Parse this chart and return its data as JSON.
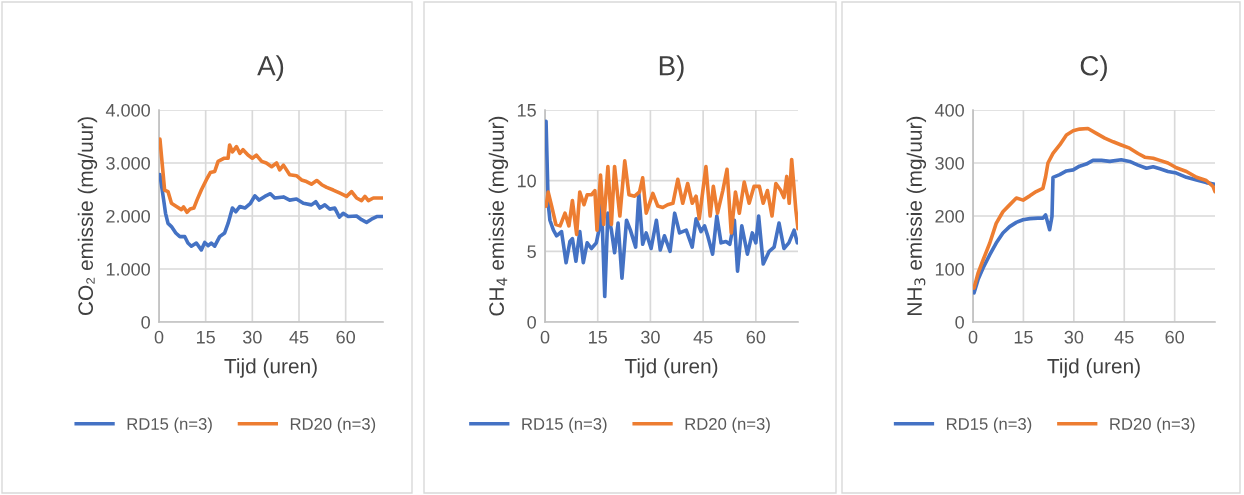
{
  "chart_data": [
    {
      "type": "line",
      "title": "A)",
      "xlabel": "Tijd (uren)",
      "ylabel": "CO₂ emissie (mg/uur)",
      "xlim": [
        0,
        72
      ],
      "xticks": [
        0,
        15,
        30,
        45,
        60
      ],
      "ylim": [
        0,
        4000
      ],
      "yticks": [
        {
          "value": 0,
          "label": "0"
        },
        {
          "value": 1000,
          "label": "1.000"
        },
        {
          "value": 2000,
          "label": "2.000"
        },
        {
          "value": 3000,
          "label": "3.000"
        },
        {
          "value": 4000,
          "label": "4.000"
        }
      ],
      "grid": true,
      "legend": "bottom",
      "marker": "none",
      "line_style": "solid",
      "series": [
        {
          "name": "RD15 (n=3)",
          "color": "#4472c4",
          "x": [
            0.3,
            1.5,
            2.1,
            2.9,
            4,
            5.4,
            6.7,
            8.3,
            9.3,
            10.4,
            12,
            13.6,
            14.7,
            15.8,
            16.8,
            17.9,
            19.5,
            21.1,
            22.2,
            23.6,
            24.7,
            26,
            27.6,
            29.4,
            30.8,
            32.2,
            34,
            35.8,
            37.2,
            40,
            42,
            44.2,
            46.4,
            49,
            50.4,
            51.7,
            53.3,
            54.9,
            56.5,
            58,
            59.2,
            60.8,
            63.5,
            65.1,
            66.7,
            68.3,
            70,
            71.9
          ],
          "values": [
            2780,
            2300,
            2050,
            1860,
            1800,
            1680,
            1610,
            1610,
            1490,
            1430,
            1490,
            1360,
            1500,
            1440,
            1490,
            1430,
            1610,
            1680,
            1860,
            2150,
            2080,
            2180,
            2150,
            2240,
            2380,
            2300,
            2370,
            2420,
            2340,
            2360,
            2300,
            2320,
            2240,
            2210,
            2270,
            2150,
            2210,
            2130,
            2150,
            1980,
            2050,
            1990,
            2000,
            1930,
            1880,
            1940,
            1990,
            1990
          ]
        },
        {
          "name": "RD20 (n=3)",
          "color": "#ed7d31",
          "x": [
            0.3,
            1.8,
            2.9,
            4,
            5.6,
            7.2,
            7.9,
            9,
            10,
            11.2,
            12.2,
            13.6,
            15.2,
            16.5,
            17.9,
            19,
            21,
            22.2,
            22.7,
            23.6,
            24.9,
            26,
            27,
            28.6,
            30,
            31.3,
            33,
            34.5,
            36.2,
            37.8,
            38.8,
            40,
            42,
            44.2,
            45.8,
            47.4,
            49,
            50.7,
            52.3,
            53.9,
            56,
            58.2,
            60.3,
            61.9,
            63.5,
            65.1,
            66.2,
            67.3,
            68.9,
            71.9
          ],
          "values": [
            3450,
            2490,
            2460,
            2240,
            2180,
            2120,
            2170,
            2070,
            2130,
            2150,
            2300,
            2490,
            2680,
            2820,
            2840,
            3030,
            3090,
            3090,
            3340,
            3210,
            3310,
            3180,
            3250,
            3150,
            3090,
            3150,
            3030,
            3000,
            2930,
            3000,
            2870,
            2960,
            2780,
            2760,
            2680,
            2650,
            2600,
            2670,
            2590,
            2540,
            2490,
            2430,
            2370,
            2460,
            2340,
            2290,
            2370,
            2290,
            2340,
            2340
          ]
        }
      ]
    },
    {
      "type": "line",
      "title": "B)",
      "xlabel": "Tijd (uren)",
      "ylabel": "CH$_{4}$ emissie (mg/uur)",
      "xlim": [
        0,
        72
      ],
      "xticks": [
        0,
        15,
        30,
        45,
        60
      ],
      "ylim": [
        0,
        15
      ],
      "yticks": [
        0,
        5,
        10,
        15
      ],
      "grid": true,
      "legend": "bottom",
      "marker": "none",
      "line_style": "solid",
      "series": [
        {
          "name": "RD15 (n=3)",
          "color": "#4472c4",
          "x": [
            0.3,
            0.9,
            1.4,
            2.4,
            3.3,
            4.7,
            6,
            7.1,
            7.8,
            8.8,
            9.9,
            10.9,
            12,
            13.2,
            14.6,
            15.6,
            16.1,
            17,
            17.9,
            18.9,
            19.8,
            20.8,
            21.9,
            23.2,
            24.3,
            25.8,
            26.7,
            27.8,
            28.8,
            30.2,
            31.7,
            32.8,
            34,
            35.6,
            36.9,
            38.3,
            40.2,
            41.9,
            43,
            44.4,
            45.4,
            46.3,
            47.7,
            48.9,
            50.1,
            51.5,
            52.6,
            53.9,
            54.8,
            56,
            57.6,
            59,
            60,
            60.8,
            62.1,
            63.8,
            65.2,
            66.6,
            68,
            69.4,
            70.9,
            71.8
          ],
          "values": [
            14.2,
            8.4,
            7.2,
            6.5,
            6.1,
            6.4,
            4.2,
            5.7,
            5.9,
            4.3,
            6.4,
            4.2,
            5.6,
            5.2,
            5.6,
            6.8,
            8.4,
            1.8,
            7.7,
            6.5,
            4.9,
            7.0,
            3.1,
            7.2,
            6.5,
            5.3,
            9.1,
            5.5,
            6.3,
            5.2,
            7.2,
            5.1,
            6.1,
            5.0,
            7.7,
            6.3,
            6.5,
            5.3,
            7.3,
            6.4,
            6.8,
            6.1,
            4.8,
            7.5,
            5.6,
            5.7,
            5.5,
            7.2,
            3.6,
            6.8,
            4.8,
            6.3,
            5.6,
            7.5,
            4.1,
            5.0,
            5.3,
            7.0,
            5.2,
            5.6,
            6.5,
            5.6
          ]
        },
        {
          "name": "RD20 (n=3)",
          "color": "#ed7d31",
          "x": [
            0.3,
            0.9,
            1.9,
            3.1,
            4.3,
            5.7,
            6.8,
            7.8,
            9,
            9.9,
            11.1,
            12,
            13.2,
            14.2,
            14.8,
            15.8,
            16.7,
            17.9,
            18.9,
            19.8,
            21.3,
            22.7,
            23.9,
            25.5,
            26.9,
            27.8,
            28.8,
            30.7,
            32.1,
            33.5,
            34.9,
            36.4,
            37.8,
            39.2,
            40.6,
            41.9,
            43,
            43.9,
            45.8,
            47,
            47.9,
            49.1,
            50.6,
            51.8,
            53,
            54.2,
            55.3,
            56.7,
            58.1,
            59.5,
            61,
            62.1,
            63.3,
            64.6,
            65.7,
            67.1,
            68,
            68.8,
            69.5,
            70.2,
            71.4,
            72
          ],
          "values": [
            8.2,
            9.2,
            8.2,
            6.9,
            6.8,
            7.7,
            6.8,
            8.6,
            6.2,
            9.2,
            8.3,
            9.0,
            9.0,
            9.3,
            6.5,
            10.4,
            6.9,
            11.0,
            6.9,
            11.0,
            7.5,
            11.4,
            9.0,
            8.9,
            9.2,
            10.2,
            7.7,
            9.1,
            8.2,
            8.1,
            8.3,
            8.4,
            10.1,
            8.4,
            9.8,
            8.4,
            8.9,
            7.3,
            11.0,
            7.5,
            9.6,
            7.7,
            9.3,
            10.8,
            6.3,
            9.2,
            7.7,
            9.9,
            8.4,
            9.6,
            9.6,
            8.4,
            9.3,
            7.5,
            9.8,
            9.3,
            8.8,
            10.3,
            8.4,
            11.5,
            7.9,
            6.6
          ]
        }
      ]
    },
    {
      "type": "line",
      "title": "C)",
      "xlabel": "Tijd (uren)",
      "ylabel": "NH$_{3}$ emissie (mg/uur)",
      "xlim": [
        0,
        72
      ],
      "xticks": [
        0,
        15,
        30,
        45,
        60
      ],
      "ylim": [
        0,
        400
      ],
      "yticks": [
        0,
        100,
        200,
        300,
        400
      ],
      "grid": true,
      "legend": "bottom",
      "marker": "none",
      "line_style": "solid",
      "series": [
        {
          "name": "RD15 (n=3)",
          "color": "#4472c4",
          "x": [
            0.3,
            1.5,
            3,
            5,
            6.9,
            8.9,
            10.9,
            12.9,
            14.9,
            16.9,
            19.3,
            20.8,
            21.6,
            22.3,
            22.8,
            23.5,
            23.8,
            25.8,
            27.8,
            29.8,
            31.7,
            33.7,
            35.7,
            38.2,
            40.7,
            44.1,
            46.6,
            49.1,
            51.6,
            53.6,
            55.6,
            58,
            60.5,
            63.5,
            66.5,
            69.4,
            71.9
          ],
          "values": [
            55,
            80,
            102,
            127,
            149,
            168,
            180,
            188,
            193,
            195,
            196,
            196,
            202,
            186,
            174,
            199,
            273,
            278,
            285,
            287,
            294,
            298,
            305,
            305,
            303,
            306,
            303,
            296,
            290,
            293,
            289,
            284,
            281,
            273,
            268,
            263,
            260
          ]
        },
        {
          "name": "RD20 (n=3)",
          "color": "#ed7d31",
          "x": [
            0.3,
            1.5,
            3,
            5,
            6.9,
            8.9,
            10.9,
            12.9,
            14.9,
            16.9,
            18.8,
            20.8,
            21.6,
            22.3,
            23.8,
            25.8,
            27.8,
            29.8,
            31.7,
            34.2,
            36.7,
            39.2,
            41.7,
            44.1,
            46.6,
            49.1,
            51.1,
            53.6,
            55.6,
            58,
            60.5,
            63.5,
            66.5,
            69.4,
            71.4,
            72
          ],
          "values": [
            64,
            92,
            117,
            149,
            186,
            208,
            221,
            234,
            230,
            238,
            246,
            252,
            274,
            300,
            318,
            334,
            353,
            361,
            364,
            365,
            356,
            347,
            340,
            334,
            328,
            318,
            311,
            309,
            305,
            300,
            291,
            284,
            273,
            267,
            256,
            246
          ]
        }
      ]
    }
  ]
}
